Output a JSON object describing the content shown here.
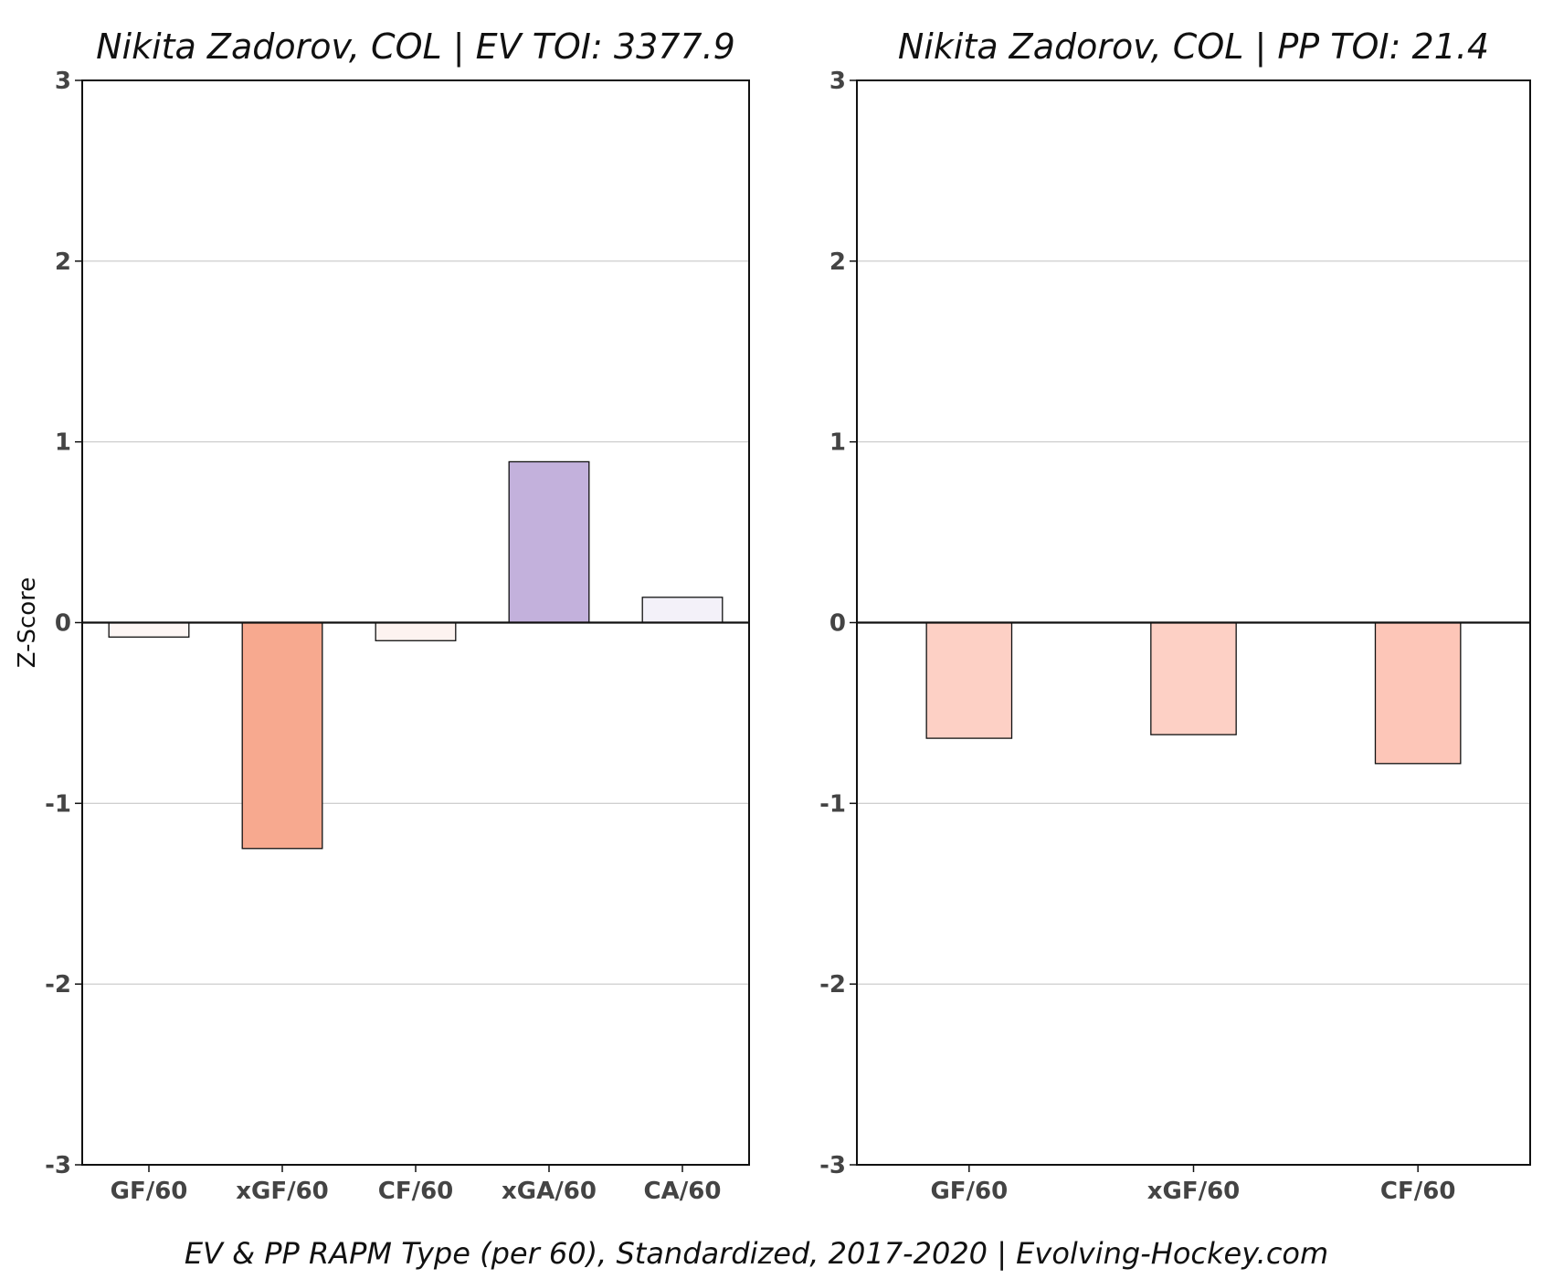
{
  "caption": "EV & PP RAPM Type (per 60), Standardized, 2017-2020    |    Evolving-Hockey.com",
  "chart_data": [
    {
      "type": "bar",
      "title": "Nikita Zadorov, COL  |  EV TOI: 3377.9",
      "ylabel": "Z-Score",
      "xlabel": "",
      "ylim": [
        -3,
        3
      ],
      "yticks": [
        "-3",
        "-2",
        "-1",
        "0",
        "1",
        "2",
        "3"
      ],
      "grid": "horizontal",
      "categories": [
        "GF/60",
        "xGF/60",
        "CF/60",
        "xGA/60",
        "CA/60"
      ],
      "values": [
        -0.08,
        -1.25,
        -0.1,
        0.89,
        0.14
      ],
      "colors": [
        "#fdf6f4",
        "#f7a98f",
        "#fdf3f0",
        "#c3b1dc",
        "#f3f1f9"
      ]
    },
    {
      "type": "bar",
      "title": "Nikita Zadorov, COL  |  PP TOI: 21.4",
      "ylabel": "",
      "xlabel": "",
      "ylim": [
        -3,
        3
      ],
      "yticks": [
        "-3",
        "-2",
        "-1",
        "0",
        "1",
        "2",
        "3"
      ],
      "grid": "horizontal",
      "categories": [
        "GF/60",
        "xGF/60",
        "CF/60"
      ],
      "values": [
        -0.64,
        -0.62,
        -0.78
      ],
      "colors": [
        "#fdd0c5",
        "#fdd0c5",
        "#fdc6b8"
      ]
    }
  ]
}
